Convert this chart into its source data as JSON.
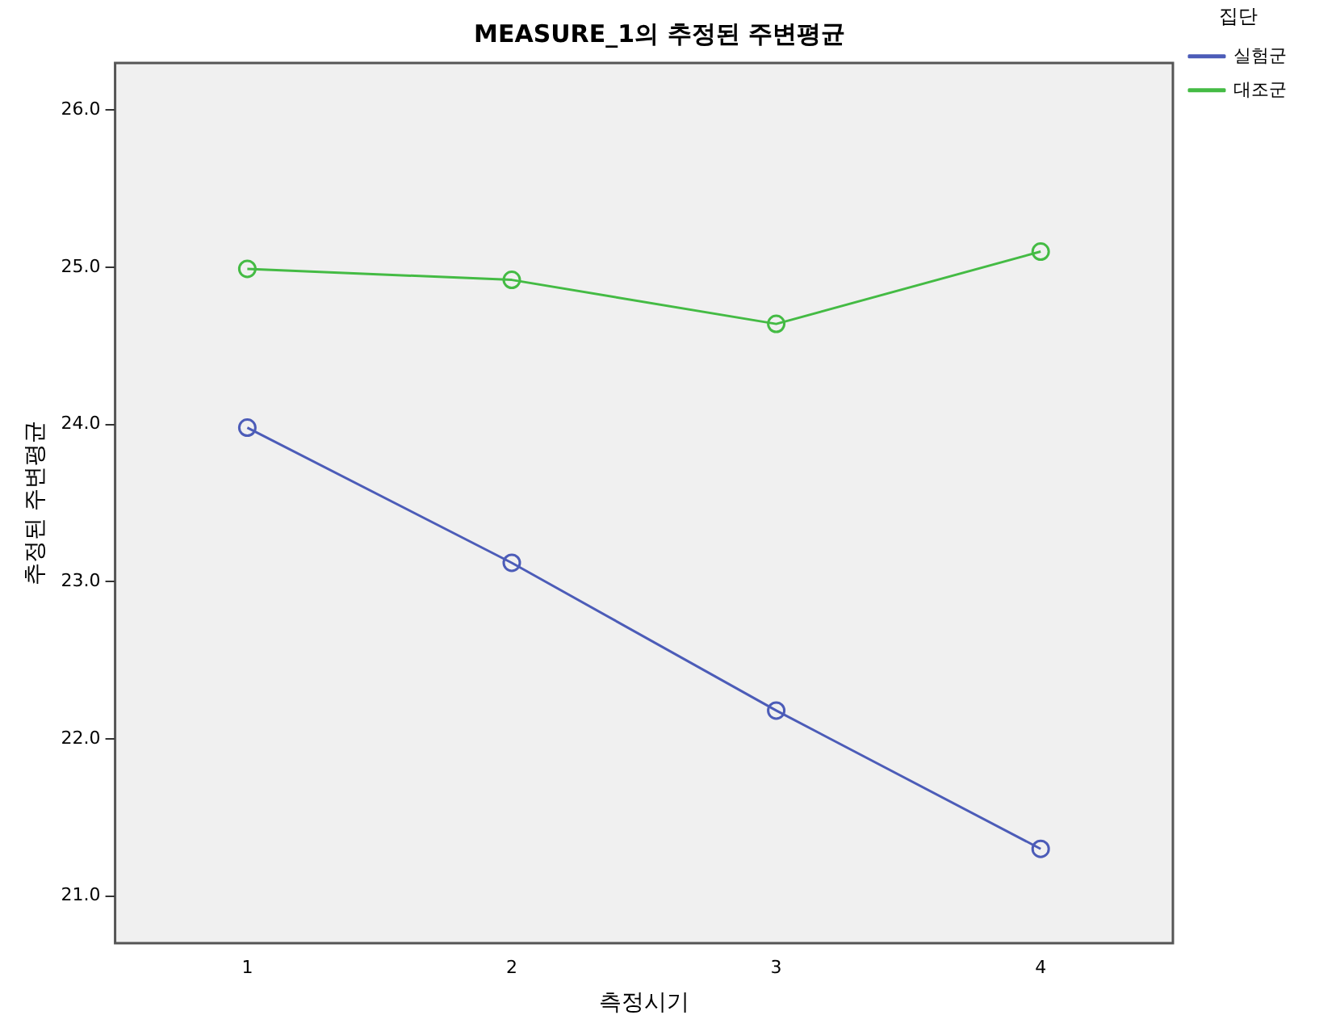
{
  "chart_data": {
    "type": "line",
    "title": "MEASURE_1의 추정된 주변평균",
    "xlabel": "측정시기",
    "ylabel": "추정된 주변평균",
    "legend_title": "집단",
    "categories": [
      "1",
      "2",
      "3",
      "4"
    ],
    "series": [
      {
        "name": "실험군",
        "color": "#4c5cb8",
        "values": [
          23.98,
          23.12,
          22.18,
          21.3
        ]
      },
      {
        "name": "대조군",
        "color": "#44bb44",
        "values": [
          24.99,
          24.92,
          24.64,
          25.1
        ]
      }
    ],
    "ylim": [
      20.7,
      26.3
    ],
    "yticks": [
      {
        "value": 21,
        "label": "21.0"
      },
      {
        "value": 22,
        "label": "22.0"
      },
      {
        "value": 23,
        "label": "23.0"
      },
      {
        "value": 24,
        "label": "24.0"
      },
      {
        "value": 25,
        "label": "25.0"
      },
      {
        "value": 26,
        "label": "26.0"
      }
    ],
    "grid": false,
    "legend": "right",
    "marker": "circle",
    "line_style": "solid"
  }
}
